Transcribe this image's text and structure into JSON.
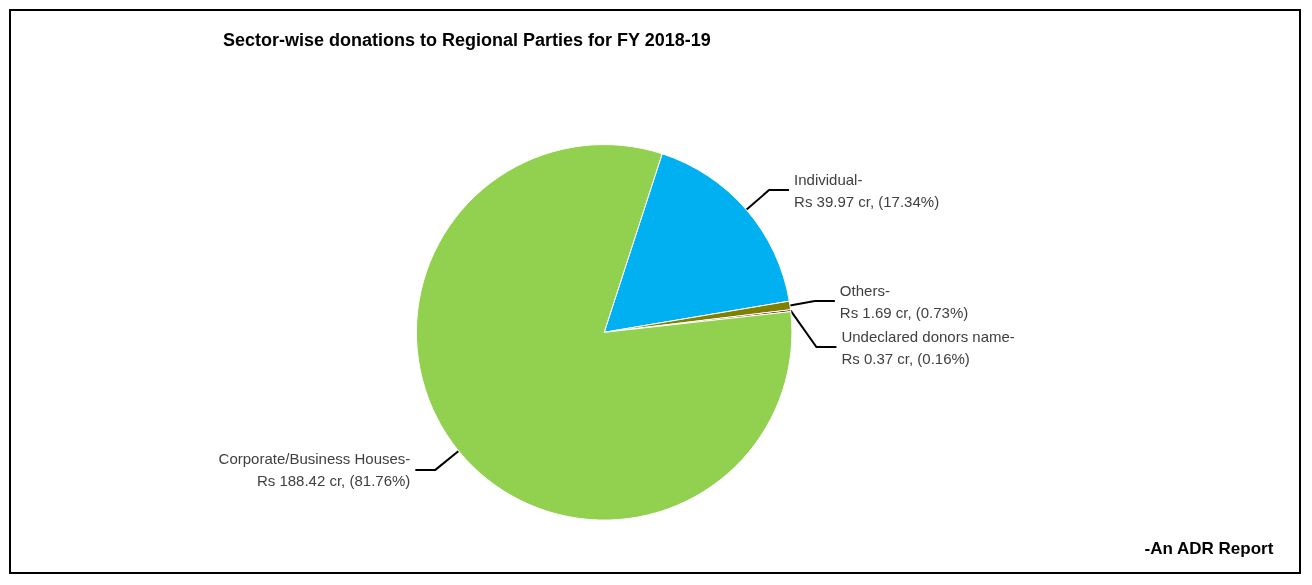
{
  "chart_data": {
    "type": "pie",
    "title": "Sector-wise donations to Regional Parties for FY 2018-19",
    "categories": [
      "Individual-",
      "Others-",
      "Undeclared donors name-",
      "Corporate/Business Houses-"
    ],
    "values": [
      39.97,
      1.69,
      0.37,
      188.42
    ],
    "colors": [
      "#00b0f0",
      "#7f7f00",
      "#5c0000",
      "#92d050"
    ],
    "value_labels": [
      "Rs 39.97 cr, (17.34%)",
      "Rs 1.69 cr, (0.73%)",
      "Rs 0.37 cr, (0.16%)",
      "Rs 188.42 cr, (81.76%)"
    ],
    "annotations": [
      "-An ADR Report"
    ],
    "legend": false
  }
}
